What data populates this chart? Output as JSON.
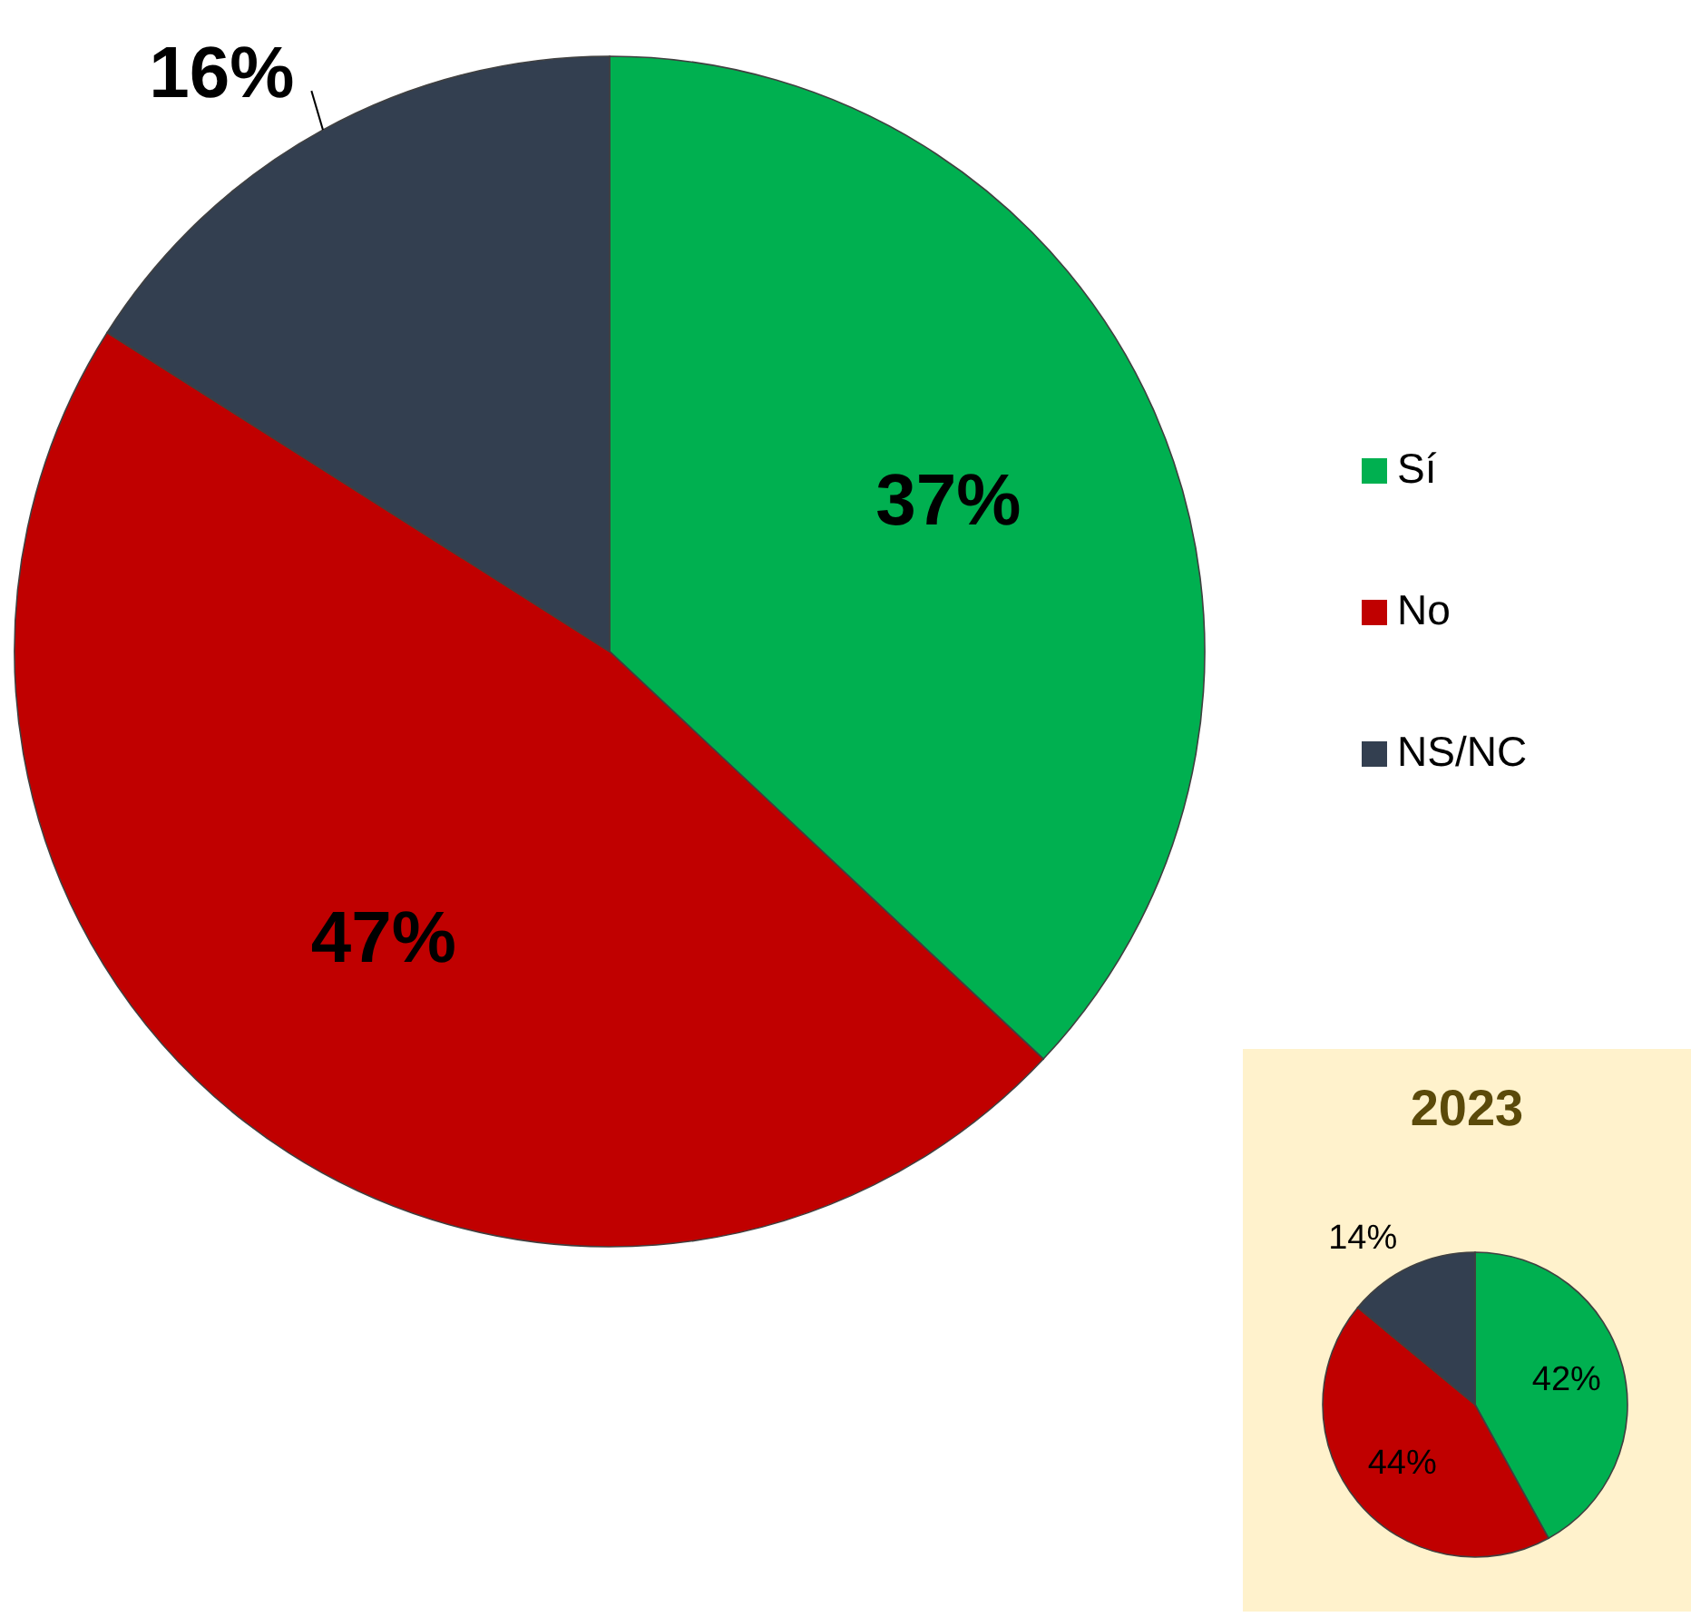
{
  "chart_data": [
    {
      "type": "pie",
      "categories": [
        "Sí",
        "No",
        "NS/NC"
      ],
      "values": [
        37,
        47,
        16
      ],
      "value_labels": [
        "37%",
        "47%",
        "16%"
      ],
      "colors": [
        "#00b050",
        "#c00000",
        "#333f50"
      ],
      "legend": "right"
    },
    {
      "type": "pie",
      "title": "2023",
      "categories": [
        null,
        null,
        null
      ],
      "values": [
        42,
        44,
        14
      ],
      "value_labels": [
        "42%",
        "44%",
        "14%"
      ],
      "colors": [
        "#00b050",
        "#c00000",
        "#333f50"
      ]
    }
  ]
}
